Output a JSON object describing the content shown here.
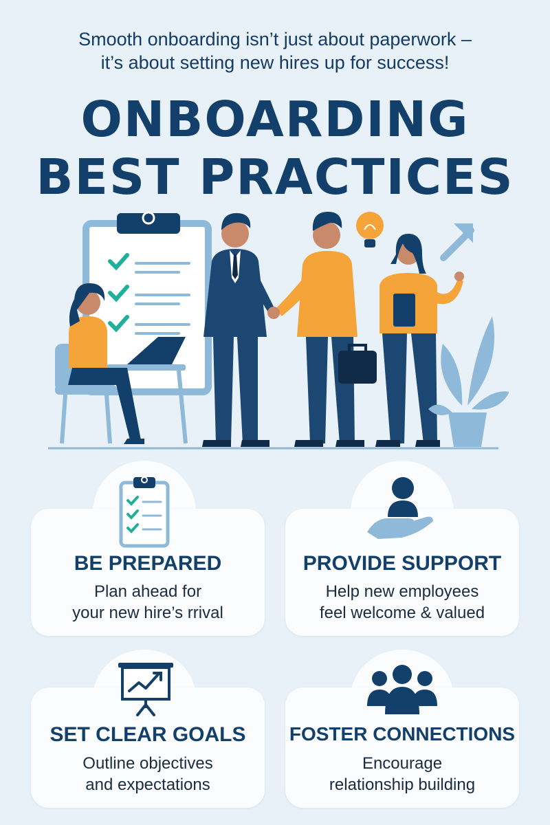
{
  "intro": {
    "line1": "Smooth onboarding isn’t just about paperwork –",
    "line2": "it’s about setting new hires up for success!"
  },
  "title": {
    "line1": "ONBOARDING",
    "line2": "BEST PRACTICES"
  },
  "colors": {
    "navy": "#13406b",
    "orange": "#f5a43a",
    "light_blue": "#8fb9d8",
    "teal_check": "#1fb09a",
    "background": "#e8f1f8",
    "card": "#fbfcfd"
  },
  "cards": [
    {
      "icon": "clipboard-checklist-icon",
      "title": "BE PREPARED",
      "line1": "Plan ahead for",
      "line2": "your new hire’s rrival"
    },
    {
      "icon": "hand-support-icon",
      "title": "PROVIDE SUPPORT",
      "line1": "Help new employees",
      "line2": "feel welcome & valued"
    },
    {
      "icon": "presentation-chart-icon",
      "title": "SET CLEAR GOALS",
      "line1": "Outline objectives",
      "line2": "and expectations"
    },
    {
      "icon": "group-people-icon",
      "title": "FOSTER CONNECTIONS",
      "line1": "Encourage",
      "line2": "relationship building"
    }
  ]
}
